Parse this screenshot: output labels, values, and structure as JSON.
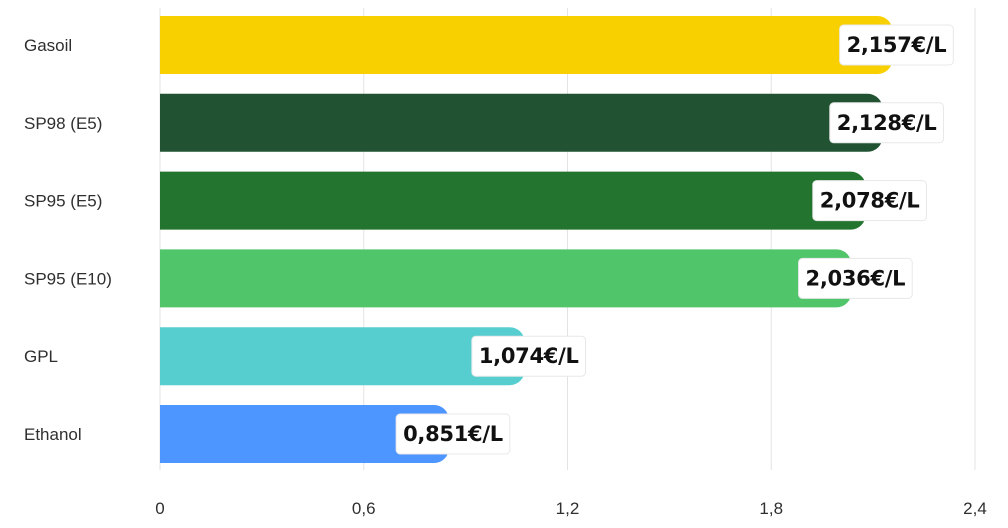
{
  "chart_data": {
    "type": "bar",
    "orientation": "horizontal",
    "title": "",
    "xlabel": "",
    "ylabel": "",
    "categories": [
      "Gasoil",
      "SP98 (E5)",
      "SP95 (E5)",
      "SP95 (E10)",
      "GPL",
      "Ethanol"
    ],
    "values": [
      2.157,
      2.128,
      2.078,
      2.036,
      1.074,
      0.851
    ],
    "value_labels": [
      "2,157€/L",
      "2,128€/L",
      "2,078€/L",
      "2,036€/L",
      "1,074€/L",
      "0,851€/L"
    ],
    "colors": [
      "#f8d000",
      "#215232",
      "#22742e",
      "#50c56a",
      "#56ced0",
      "#4d95ff"
    ],
    "xlim": [
      0,
      2.4
    ],
    "x_ticks": [
      0,
      0.6,
      1.2,
      1.8,
      2.4
    ],
    "x_tick_labels": [
      "0",
      "0,6",
      "1,2",
      "1,8",
      "2,4"
    ],
    "grid": true,
    "legend": "none"
  }
}
